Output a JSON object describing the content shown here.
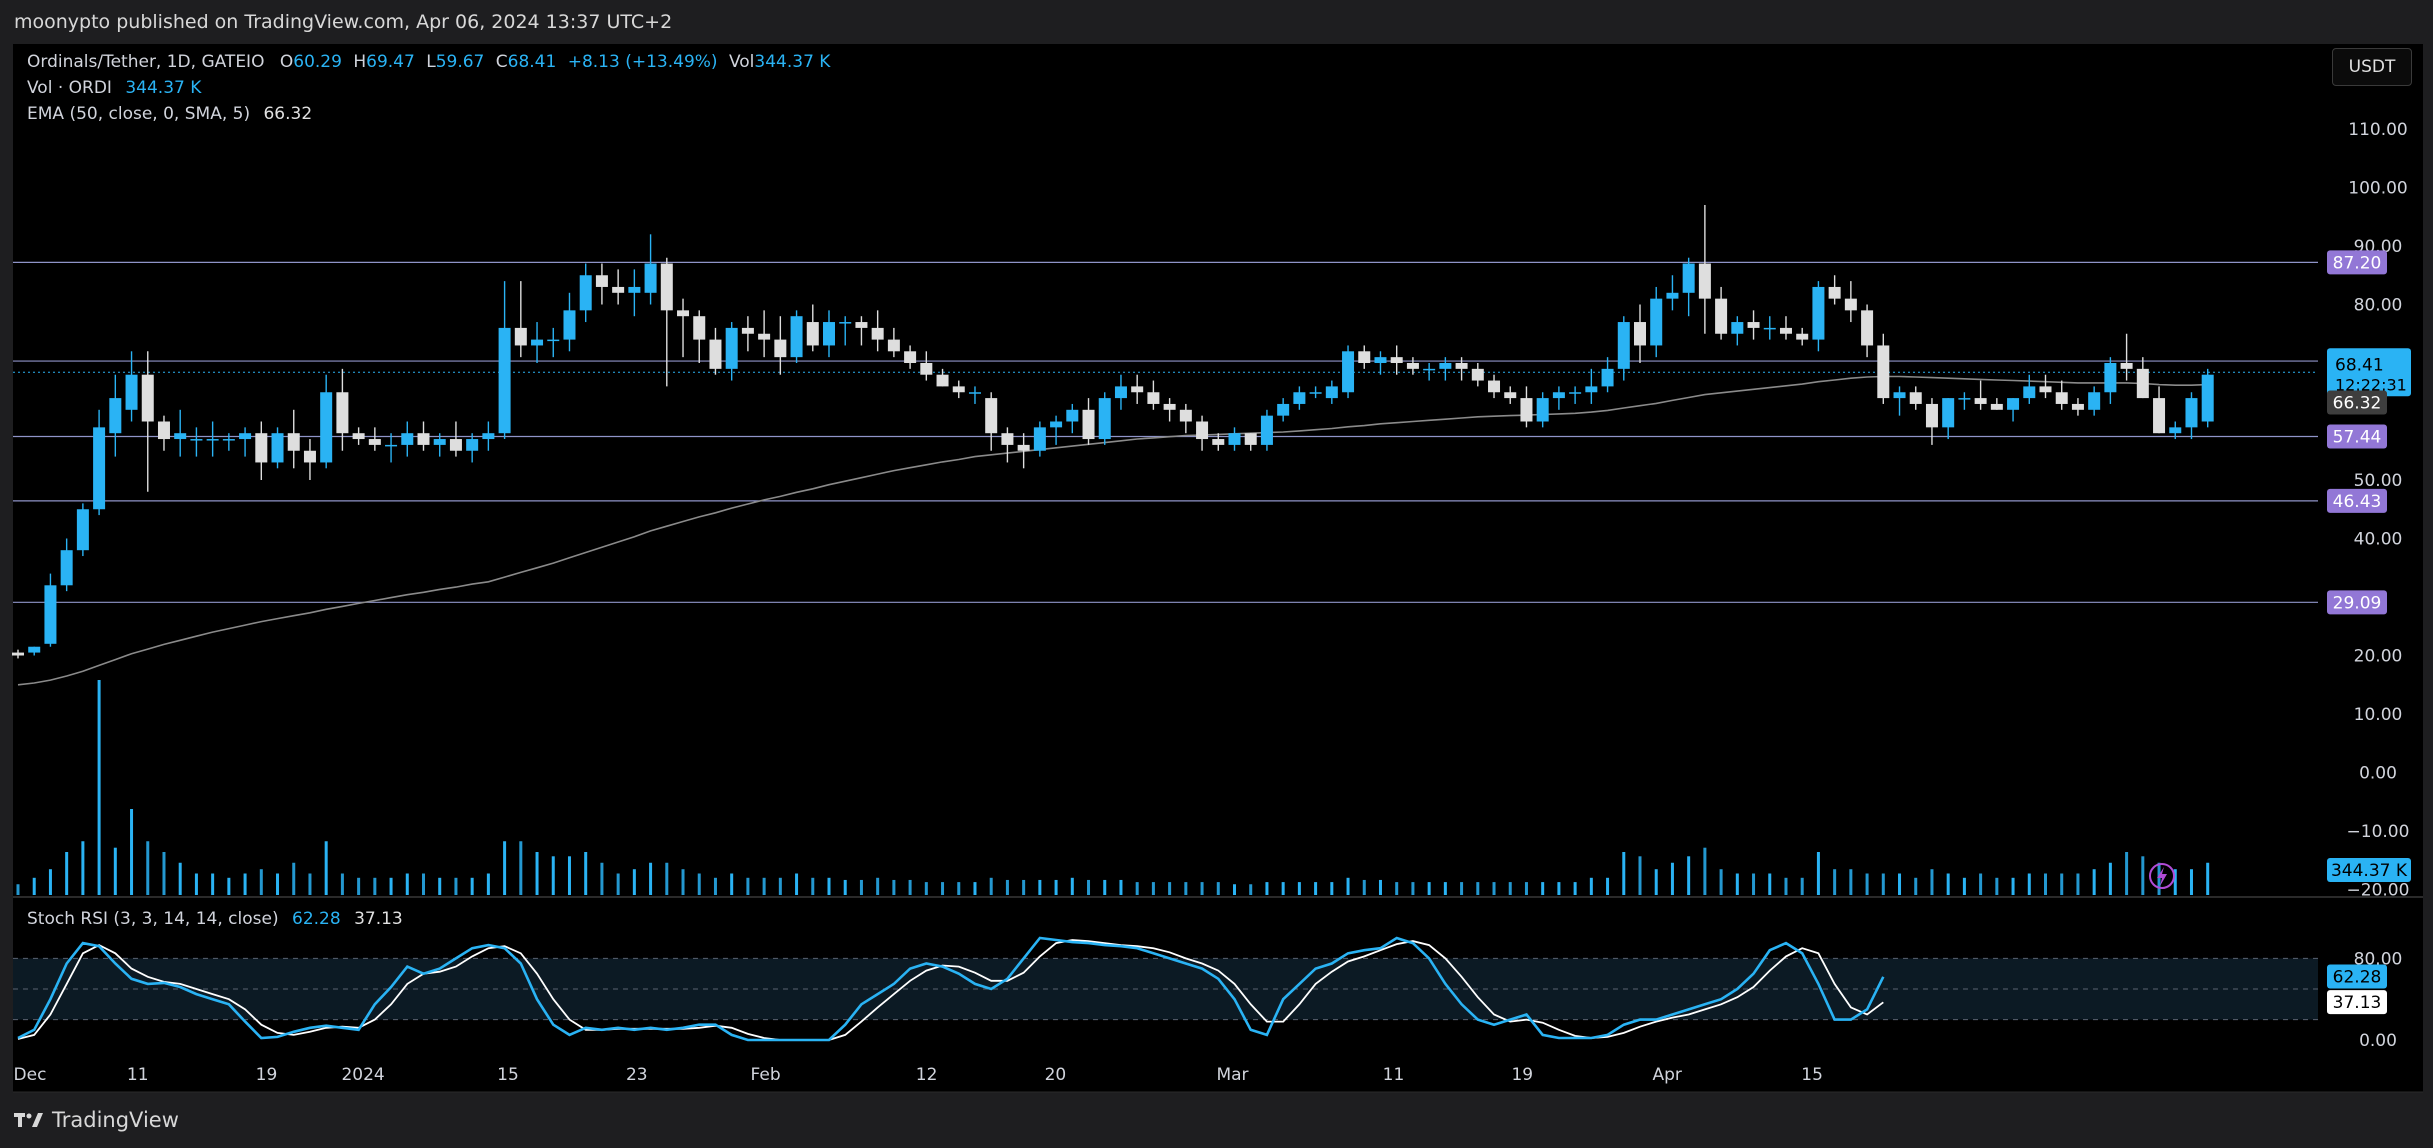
{
  "header": {
    "published_line": "moonypto published on TradingView.com, Apr 06, 2024 13:37 UTC+2"
  },
  "legend": {
    "symbol": "Ordinals/Tether, 1D, GATEIO",
    "o_label": "O",
    "o_value": "60.29",
    "h_label": "H",
    "h_value": "69.47",
    "l_label": "L",
    "l_value": "59.67",
    "c_label": "C",
    "c_value": "68.41",
    "change": "+8.13 (+13.49%)",
    "vol_label": "Vol",
    "vol_value": "344.37 K",
    "vol_indicator": "Vol · ORDI",
    "vol_indicator_value": "344.37 K",
    "ema_label": "EMA (50, close, 0, SMA, 5)",
    "ema_value": "66.32",
    "stoch_label": "Stoch RSI (3, 3, 14, 14, close)",
    "stoch_k": "62.28",
    "stoch_d": "37.13"
  },
  "currency_button": "USDT",
  "footer": {
    "brand": "TradingView"
  },
  "colors": {
    "up": "#2ab3f4",
    "down": "#dedede",
    "hline": "#8f94c8",
    "badge": "#9277d6",
    "ema": "#8a8a8a",
    "stoch_k": "#2ab3f4",
    "stoch_d": "#ffffff"
  },
  "chart_data": {
    "type": "candlestick",
    "price_axis_ticks": [
      "110.00",
      "100.00",
      "90.00",
      "80.00",
      "50.00",
      "40.00",
      "20.00",
      "10.00",
      "0.00",
      "−10.00",
      "−20.00"
    ],
    "horizontal_levels": [
      "87.20",
      "70.33",
      "57.44",
      "46.43",
      "29.09"
    ],
    "price_labels": {
      "last": "68.41",
      "countdown": "12:22:31",
      "ema": "66.32",
      "volume": "344.37 K"
    },
    "x_labels": [
      "Dec",
      "11",
      "19",
      "2024",
      "15",
      "23",
      "Feb",
      "12",
      "20",
      "Mar",
      "11",
      "19",
      "Apr",
      "15"
    ],
    "candles": [
      [
        20.5,
        21.0,
        19.5,
        20.0
      ],
      [
        20.5,
        21.5,
        20.0,
        21.5
      ],
      [
        22,
        34,
        21.5,
        32
      ],
      [
        32,
        40,
        31,
        38
      ],
      [
        38,
        46,
        37,
        45
      ],
      [
        45,
        62,
        44,
        59
      ],
      [
        58,
        68,
        54,
        64
      ],
      [
        62,
        72,
        60,
        68
      ],
      [
        68,
        72,
        48,
        60
      ],
      [
        60,
        61,
        55,
        57
      ],
      [
        57,
        62,
        54,
        58
      ],
      [
        57,
        59,
        54,
        57
      ],
      [
        57,
        60,
        54,
        57
      ],
      [
        57,
        58,
        55,
        57
      ],
      [
        57,
        59,
        54,
        58
      ],
      [
        58,
        60,
        50,
        53
      ],
      [
        53,
        59,
        52,
        58
      ],
      [
        58,
        62,
        52,
        55
      ],
      [
        55,
        57,
        50,
        53
      ],
      [
        53,
        68,
        52,
        65
      ],
      [
        65,
        69,
        55,
        58
      ],
      [
        58,
        59,
        56,
        57
      ],
      [
        57,
        59,
        55,
        56
      ],
      [
        56,
        58,
        53,
        56
      ],
      [
        56,
        60,
        54,
        58
      ],
      [
        58,
        60,
        55,
        56
      ],
      [
        56,
        58,
        54,
        57
      ],
      [
        57,
        60,
        54,
        55
      ],
      [
        55,
        58,
        53,
        57
      ],
      [
        57,
        60,
        55,
        58
      ],
      [
        58,
        84,
        57,
        76
      ],
      [
        76,
        84,
        71,
        73
      ],
      [
        73,
        77,
        70,
        74
      ],
      [
        74,
        76,
        71,
        74
      ],
      [
        74,
        82,
        72,
        79
      ],
      [
        79,
        87,
        77,
        85
      ],
      [
        85,
        87,
        80,
        83
      ],
      [
        83,
        86,
        80,
        82
      ],
      [
        82,
        86,
        78,
        83
      ],
      [
        82,
        92,
        80,
        87
      ],
      [
        87,
        88,
        66,
        79
      ],
      [
        79,
        81,
        71,
        78
      ],
      [
        78,
        79,
        70,
        74
      ],
      [
        74,
        76,
        68,
        69
      ],
      [
        69,
        77,
        67,
        76
      ],
      [
        76,
        78,
        72,
        75
      ],
      [
        75,
        79,
        71,
        74
      ],
      [
        74,
        78,
        68,
        71
      ],
      [
        71,
        79,
        70,
        78
      ],
      [
        77,
        80,
        72,
        73
      ],
      [
        73,
        79,
        71,
        77
      ],
      [
        77,
        78,
        73,
        77
      ],
      [
        77,
        78,
        73,
        76
      ],
      [
        76,
        79,
        72,
        74
      ],
      [
        74,
        76,
        71,
        72
      ],
      [
        72,
        73,
        69,
        70
      ],
      [
        70,
        72,
        67,
        68
      ],
      [
        68,
        69,
        66,
        66
      ],
      [
        66,
        67,
        64,
        65
      ],
      [
        65,
        66,
        63,
        65
      ],
      [
        64,
        65,
        55,
        58
      ],
      [
        58,
        59,
        53,
        56
      ],
      [
        56,
        58,
        52,
        55
      ],
      [
        55,
        60,
        54,
        59
      ],
      [
        59,
        61,
        56,
        60
      ],
      [
        60,
        63,
        58,
        62
      ],
      [
        62,
        64,
        56,
        57
      ],
      [
        57,
        65,
        56,
        64
      ],
      [
        64,
        68,
        62,
        66
      ],
      [
        66,
        68,
        63,
        65
      ],
      [
        65,
        67,
        62,
        63
      ],
      [
        63,
        64,
        60,
        62
      ],
      [
        62,
        63,
        58,
        60
      ],
      [
        60,
        61,
        55,
        57
      ],
      [
        57,
        58,
        55,
        56
      ],
      [
        56,
        59,
        55,
        58
      ],
      [
        58,
        58,
        55,
        56
      ],
      [
        56,
        62,
        55,
        61
      ],
      [
        61,
        64,
        60,
        63
      ],
      [
        63,
        66,
        62,
        65
      ],
      [
        65,
        66,
        64,
        65
      ],
      [
        64,
        67,
        63,
        66
      ],
      [
        65,
        73,
        64,
        72
      ],
      [
        72,
        73,
        69,
        70
      ],
      [
        70,
        72,
        68,
        71
      ],
      [
        71,
        73,
        68,
        70
      ],
      [
        70,
        71,
        68,
        69
      ],
      [
        69,
        70,
        67,
        69
      ],
      [
        69,
        71,
        67,
        70
      ],
      [
        70,
        71,
        67,
        69
      ],
      [
        69,
        70,
        66,
        67
      ],
      [
        67,
        68,
        64,
        65
      ],
      [
        65,
        66,
        63,
        64
      ],
      [
        64,
        66,
        59,
        60
      ],
      [
        60,
        65,
        59,
        64
      ],
      [
        64,
        66,
        62,
        65
      ],
      [
        65,
        66,
        63,
        65
      ],
      [
        65,
        69,
        63,
        66
      ],
      [
        66,
        71,
        65,
        69
      ],
      [
        69,
        78,
        67,
        77
      ],
      [
        77,
        80,
        70,
        73
      ],
      [
        73,
        83,
        71,
        81
      ],
      [
        81,
        85,
        79,
        82
      ],
      [
        82,
        88,
        78,
        87
      ],
      [
        87,
        97,
        75,
        81
      ],
      [
        81,
        83,
        74,
        75
      ],
      [
        75,
        78,
        73,
        77
      ],
      [
        77,
        79,
        74,
        76
      ],
      [
        76,
        78,
        74,
        76
      ],
      [
        76,
        78,
        74,
        75
      ],
      [
        75,
        76,
        73,
        74
      ],
      [
        74,
        84,
        72,
        83
      ],
      [
        83,
        85,
        80,
        81
      ],
      [
        81,
        84,
        77,
        79
      ],
      [
        79,
        80,
        71,
        73
      ],
      [
        73,
        75,
        63,
        64
      ],
      [
        64,
        66,
        61,
        65
      ],
      [
        65,
        66,
        62,
        63
      ],
      [
        63,
        64,
        56,
        59
      ],
      [
        59,
        64,
        57,
        64
      ],
      [
        64,
        65,
        62,
        64
      ],
      [
        64,
        67,
        62,
        63
      ],
      [
        63,
        64,
        62,
        62
      ],
      [
        62,
        64,
        60,
        64
      ],
      [
        64,
        68,
        63,
        66
      ],
      [
        66,
        68,
        64,
        65
      ],
      [
        65,
        67,
        62,
        63
      ],
      [
        63,
        64,
        61,
        62
      ],
      [
        62,
        66,
        61,
        65
      ],
      [
        65,
        71,
        63,
        70
      ],
      [
        70,
        75,
        67,
        69
      ],
      [
        69,
        71,
        64,
        64
      ],
      [
        64,
        66,
        58,
        58
      ],
      [
        58,
        60,
        57,
        59
      ],
      [
        59,
        65,
        57,
        64
      ],
      [
        60,
        69,
        59,
        68
      ]
    ],
    "volume_relative": [
      0.05,
      0.08,
      0.12,
      0.2,
      0.25,
      1.0,
      0.22,
      0.4,
      0.25,
      0.2,
      0.15,
      0.1,
      0.1,
      0.08,
      0.1,
      0.12,
      0.1,
      0.15,
      0.1,
      0.25,
      0.1,
      0.08,
      0.08,
      0.08,
      0.1,
      0.1,
      0.08,
      0.08,
      0.08,
      0.1,
      0.25,
      0.25,
      0.2,
      0.18,
      0.18,
      0.2,
      0.15,
      0.1,
      0.12,
      0.15,
      0.15,
      0.12,
      0.1,
      0.08,
      0.1,
      0.08,
      0.08,
      0.08,
      0.1,
      0.08,
      0.08,
      0.07,
      0.07,
      0.08,
      0.07,
      0.07,
      0.06,
      0.06,
      0.06,
      0.06,
      0.08,
      0.07,
      0.07,
      0.07,
      0.07,
      0.08,
      0.07,
      0.07,
      0.07,
      0.06,
      0.06,
      0.06,
      0.06,
      0.06,
      0.06,
      0.05,
      0.05,
      0.06,
      0.06,
      0.06,
      0.06,
      0.06,
      0.08,
      0.07,
      0.07,
      0.06,
      0.06,
      0.06,
      0.06,
      0.06,
      0.06,
      0.06,
      0.06,
      0.06,
      0.06,
      0.06,
      0.06,
      0.08,
      0.08,
      0.2,
      0.18,
      0.12,
      0.15,
      0.18,
      0.22,
      0.12,
      0.1,
      0.1,
      0.1,
      0.08,
      0.08,
      0.2,
      0.12,
      0.12,
      0.1,
      0.1,
      0.1,
      0.08,
      0.12,
      0.1,
      0.08,
      0.1,
      0.08,
      0.08,
      0.1,
      0.1,
      0.1,
      0.1,
      0.12,
      0.15,
      0.2,
      0.18,
      0.15,
      0.12,
      0.12,
      0.15
    ],
    "ema_series": [
      15,
      15.3,
      15.8,
      16.5,
      17.3,
      18.3,
      19.3,
      20.3,
      21.1,
      21.9,
      22.6,
      23.3,
      24,
      24.6,
      25.2,
      25.8,
      26.3,
      26.8,
      27.3,
      27.9,
      28.4,
      28.9,
      29.4,
      29.9,
      30.4,
      30.8,
      31.3,
      31.7,
      32.2,
      32.6,
      33.4,
      34.2,
      35,
      35.8,
      36.7,
      37.6,
      38.5,
      39.4,
      40.3,
      41.3,
      42.1,
      42.9,
      43.7,
      44.4,
      45.2,
      45.9,
      46.6,
      47.2,
      47.9,
      48.5,
      49.2,
      49.8,
      50.4,
      51,
      51.6,
      52.1,
      52.6,
      53.1,
      53.5,
      54,
      54.3,
      54.6,
      54.9,
      55.2,
      55.5,
      55.8,
      56.1,
      56.4,
      56.7,
      57,
      57.2,
      57.4,
      57.6,
      57.7,
      57.8,
      57.9,
      58,
      58.1,
      58.2,
      58.4,
      58.6,
      58.8,
      59.1,
      59.3,
      59.6,
      59.8,
      60,
      60.2,
      60.4,
      60.6,
      60.8,
      60.9,
      61,
      61.1,
      61.2,
      61.3,
      61.4,
      61.6,
      61.9,
      62.3,
      62.7,
      63.1,
      63.6,
      64.1,
      64.6,
      64.9,
      65.2,
      65.5,
      65.8,
      66.1,
      66.4,
      66.8,
      67.1,
      67.4,
      67.6,
      67.7,
      67.7,
      67.6,
      67.5,
      67.4,
      67.3,
      67.2,
      67.1,
      67,
      66.9,
      66.8,
      66.7,
      66.6,
      66.6,
      66.6,
      66.6,
      66.5,
      66.3,
      66.2,
      66.2,
      66.3
    ],
    "stoch_k": [
      2,
      10,
      40,
      75,
      95,
      92,
      75,
      60,
      55,
      56,
      52,
      45,
      40,
      35,
      18,
      2,
      3,
      8,
      12,
      14,
      12,
      10,
      35,
      52,
      72,
      65,
      70,
      80,
      90,
      93,
      90,
      75,
      40,
      15,
      5,
      12,
      10,
      12,
      10,
      12,
      10,
      12,
      15,
      15,
      5,
      0,
      0,
      0,
      0,
      0,
      0,
      15,
      35,
      45,
      55,
      70,
      75,
      72,
      65,
      55,
      50,
      60,
      80,
      100,
      98,
      96,
      95,
      93,
      92,
      90,
      85,
      80,
      75,
      70,
      60,
      40,
      10,
      5,
      40,
      55,
      70,
      75,
      85,
      88,
      90,
      100,
      95,
      80,
      55,
      35,
      20,
      15,
      20,
      25,
      5,
      2,
      2,
      2,
      5,
      15,
      20,
      20,
      25,
      30,
      35,
      40,
      50,
      65,
      88,
      95,
      85,
      55,
      20,
      20,
      30,
      62
    ],
    "stoch_d": [
      1,
      5,
      25,
      55,
      85,
      93,
      85,
      70,
      62,
      57,
      55,
      50,
      45,
      40,
      30,
      15,
      7,
      5,
      8,
      12,
      13,
      12,
      20,
      35,
      55,
      65,
      67,
      72,
      82,
      90,
      92,
      85,
      65,
      40,
      20,
      10,
      10,
      11,
      11,
      11,
      11,
      11,
      12,
      14,
      12,
      6,
      2,
      0,
      0,
      0,
      0,
      5,
      18,
      32,
      45,
      58,
      68,
      73,
      72,
      66,
      58,
      58,
      66,
      82,
      95,
      98,
      97,
      95,
      93,
      92,
      90,
      86,
      80,
      75,
      68,
      55,
      35,
      18,
      18,
      35,
      55,
      67,
      77,
      82,
      88,
      94,
      97,
      93,
      80,
      62,
      42,
      25,
      18,
      20,
      17,
      10,
      4,
      2,
      3,
      7,
      13,
      18,
      22,
      25,
      30,
      35,
      42,
      52,
      68,
      82,
      90,
      85,
      55,
      32,
      25,
      37
    ],
    "stoch_ticks": [
      "80.00",
      "0.00"
    ],
    "stoch_labels": {
      "k": "62.28",
      "d": "37.13"
    }
  }
}
